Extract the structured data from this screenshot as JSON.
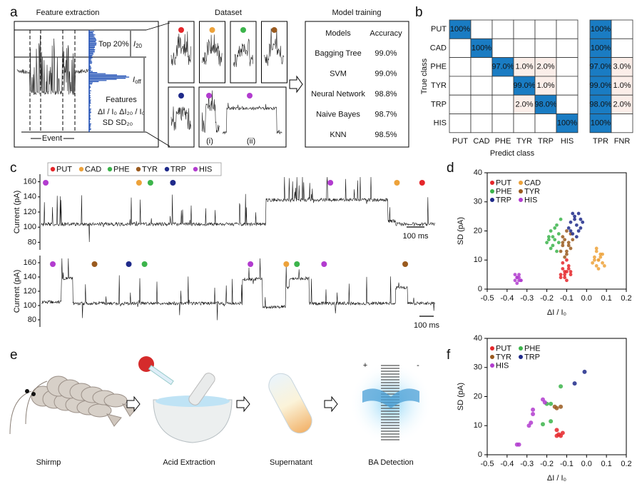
{
  "panel_labels": [
    "a",
    "b",
    "c",
    "d",
    "e",
    "f"
  ],
  "classes": [
    {
      "name": "PUT",
      "color": "#e5262a"
    },
    {
      "name": "CAD",
      "color": "#eda23a"
    },
    {
      "name": "PHE",
      "color": "#3cb44b"
    },
    {
      "name": "TYR",
      "color": "#9a5a1e"
    },
    {
      "name": "TRP",
      "color": "#1f2a8a"
    },
    {
      "name": "HIS",
      "color": "#b23ccf"
    }
  ],
  "feature_extraction": {
    "title": "Feature extraction",
    "top": "Top 20%",
    "i20": {
      "main": "I",
      "sub": "20"
    },
    "ioff": {
      "main": "I",
      "sub": "off"
    },
    "features": "Features",
    "formula": "ΔI / I₀  ΔI₂₀ / I₀",
    "sd": "SD     SD₂₀",
    "event": "Event"
  },
  "dataset": {
    "title": "Dataset",
    "top_row": [
      "PUT",
      "CAD",
      "PHE",
      "TYR"
    ],
    "bottom_row": [
      "TRP",
      "HIS",
      "HIS"
    ],
    "sublabels": [
      "(i)",
      "(ii)"
    ]
  },
  "model_training": {
    "title": "Model training",
    "header": [
      "Models",
      "Accuracy"
    ],
    "rows": [
      [
        "Bagging Tree",
        "99.0%"
      ],
      [
        "SVM",
        "99.0%"
      ],
      [
        "Neural Network",
        "98.8%"
      ],
      [
        "Naive Bayes",
        "98.7%"
      ],
      [
        "KNN",
        "98.5%"
      ]
    ]
  },
  "confusion": {
    "y_title": "True class",
    "x_title": "Predict class",
    "classes": [
      "PUT",
      "CAD",
      "PHE",
      "TYR",
      "TRP",
      "HIS"
    ],
    "cells": [
      [
        "100%",
        null,
        null,
        null,
        null,
        null
      ],
      [
        null,
        "100%",
        null,
        null,
        null,
        null
      ],
      [
        null,
        null,
        "97.0%",
        "1.0%",
        "2.0%",
        null
      ],
      [
        null,
        null,
        null,
        "99.0%",
        "1.0%",
        null
      ],
      [
        null,
        null,
        null,
        "2.0%",
        "98.0%",
        null
      ],
      [
        null,
        null,
        null,
        null,
        null,
        "100%"
      ]
    ],
    "rate_columns": [
      "TPR",
      "FNR"
    ],
    "rates": [
      [
        "100%",
        null
      ],
      [
        "100%",
        null
      ],
      [
        "97.0%",
        "3.0%"
      ],
      [
        "99.0%",
        "1.0%"
      ],
      [
        "98.0%",
        "2.0%"
      ],
      [
        "100%",
        null
      ]
    ]
  },
  "traces": {
    "ylabel": "Current (pA)",
    "ylim": [
      70,
      170
    ],
    "yticks": [
      80,
      100,
      120,
      140,
      160
    ],
    "scale_bar": "100 ms",
    "rows": [
      {
        "events": [
          "HIS",
          "CAD",
          "PHE",
          "TRP",
          "HIS",
          "CAD",
          "PUT"
        ]
      },
      {
        "events": [
          "HIS",
          "TYR",
          "TRP",
          "PHE",
          "HIS",
          "CAD",
          "PHE",
          "HIS",
          "TYR"
        ]
      }
    ]
  },
  "chart_data": [
    {
      "type": "scatter",
      "xlabel": "ΔI / I₀",
      "ylabel": "SD (pA)",
      "xlim": [
        -0.5,
        0.2
      ],
      "ylim": [
        0,
        40
      ],
      "xticks": [
        -0.5,
        -0.4,
        -0.3,
        -0.2,
        -0.1,
        {
          "value": 0,
          "label": "0.0"
        },
        0.1,
        0.2
      ],
      "yticks": [
        0,
        10,
        20,
        30,
        40
      ],
      "series": [
        {
          "name": "PUT",
          "color": "#e5262a",
          "x": [
            -0.13,
            -0.12,
            -0.11,
            -0.1,
            -0.09,
            -0.08,
            -0.12,
            -0.1,
            -0.11,
            -0.09,
            -0.13,
            -0.1,
            -0.08,
            -0.11
          ],
          "values": [
            5,
            7,
            4,
            6,
            8,
            5,
            9,
            3,
            6,
            7,
            4,
            10,
            6,
            5
          ]
        },
        {
          "name": "CAD",
          "color": "#eda23a",
          "x": [
            0.03,
            0.04,
            0.05,
            0.06,
            0.07,
            0.08,
            0.05,
            0.06,
            0.04,
            0.07,
            0.09,
            0.06,
            0.05,
            0.08
          ],
          "values": [
            9,
            11,
            8,
            10,
            12,
            9,
            13,
            7,
            10,
            11,
            8,
            10,
            14,
            12
          ]
        },
        {
          "name": "PHE",
          "color": "#3cb44b",
          "x": [
            -0.2,
            -0.19,
            -0.18,
            -0.17,
            -0.16,
            -0.15,
            -0.14,
            -0.18,
            -0.16,
            -0.13,
            -0.19,
            -0.15,
            -0.17,
            -0.14
          ],
          "values": [
            16,
            18,
            20,
            15,
            17,
            22,
            19,
            14,
            21,
            24,
            17,
            13,
            18,
            16
          ]
        },
        {
          "name": "TYR",
          "color": "#9a5a1e",
          "x": [
            -0.13,
            -0.12,
            -0.11,
            -0.1,
            -0.09,
            -0.08,
            -0.12,
            -0.1,
            -0.11,
            -0.09,
            -0.07,
            -0.1,
            -0.12,
            -0.08
          ],
          "values": [
            13,
            15,
            17,
            12,
            16,
            14,
            18,
            20,
            11,
            15,
            17,
            13,
            16,
            19
          ]
        },
        {
          "name": "TRP",
          "color": "#1f2a8a",
          "x": [
            -0.09,
            -0.08,
            -0.07,
            -0.06,
            -0.05,
            -0.04,
            -0.03,
            -0.02,
            -0.06,
            -0.05,
            -0.08,
            -0.03,
            -0.04,
            -0.07
          ],
          "values": [
            21,
            23,
            19,
            24,
            22,
            26,
            21,
            23,
            25,
            18,
            20,
            24,
            20,
            26
          ]
        },
        {
          "name": "HIS",
          "color": "#b23ccf",
          "x": [
            -0.36,
            -0.35,
            -0.34,
            -0.33,
            -0.35,
            -0.34,
            -0.33,
            -0.36,
            -0.34,
            -0.35
          ],
          "values": [
            3,
            4,
            5,
            3,
            2,
            4,
            3,
            5,
            3,
            4
          ]
        }
      ]
    },
    {
      "type": "scatter",
      "xlabel": "ΔI / I₀",
      "ylabel": "SD (pA)",
      "xlim": [
        -0.5,
        0.2
      ],
      "ylim": [
        0,
        40
      ],
      "xticks": [
        -0.5,
        -0.4,
        -0.3,
        -0.2,
        -0.1,
        {
          "value": 0,
          "label": "0.0"
        },
        0.1,
        0.2
      ],
      "yticks": [
        0,
        10,
        20,
        30,
        40
      ],
      "series": [
        {
          "name": "PUT",
          "color": "#e5262a",
          "x": [
            -0.15,
            -0.14,
            -0.12,
            -0.15,
            -0.13
          ],
          "values": [
            8.5,
            7,
            7.5,
            6.5,
            6.5
          ]
        },
        {
          "name": "PHE",
          "color": "#3cb44b",
          "x": [
            -0.2,
            -0.18,
            -0.13,
            -0.18,
            -0.22
          ],
          "values": [
            17.5,
            17.5,
            23.5,
            11.5,
            10.5
          ]
        },
        {
          "name": "TYR",
          "color": "#9a5a1e",
          "x": [
            -0.16,
            -0.15,
            -0.13
          ],
          "values": [
            16.5,
            16,
            16.5
          ]
        },
        {
          "name": "TRP",
          "color": "#1f2a8a",
          "x": [
            -0.06,
            -0.01
          ],
          "values": [
            24.5,
            28.5
          ]
        },
        {
          "name": "HIS",
          "color": "#b23ccf",
          "x": [
            -0.35,
            -0.34,
            -0.29,
            -0.28,
            -0.27,
            -0.27,
            -0.22,
            -0.21
          ],
          "values": [
            3.5,
            3.5,
            10,
            11,
            14,
            15.5,
            19,
            18
          ]
        }
      ]
    }
  ],
  "workflow": {
    "steps": [
      "Shirmp",
      "Acid Extraction",
      "Supernatant",
      "BA Detection"
    ],
    "polarity": [
      "+",
      "-"
    ]
  }
}
